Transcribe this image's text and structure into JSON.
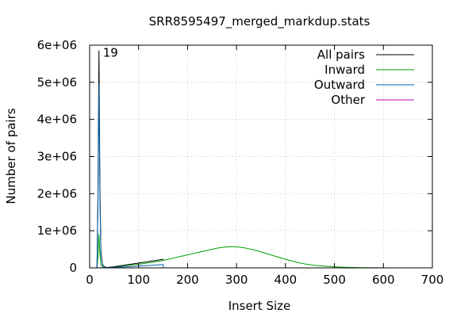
{
  "chart_data": {
    "type": "line",
    "title": "SRR8595497_merged_markdup.stats",
    "xlabel": "Insert Size",
    "ylabel": "Number of pairs",
    "xlim": [
      0,
      700
    ],
    "ylim": [
      0,
      6000000
    ],
    "x_ticks": [
      0,
      100,
      200,
      300,
      400,
      500,
      600,
      700
    ],
    "x_tick_labels": [
      "0",
      "100",
      "200",
      "300",
      "400",
      "500",
      "600",
      "700"
    ],
    "y_ticks": [
      0,
      1000000,
      2000000,
      3000000,
      4000000,
      5000000,
      6000000
    ],
    "y_tick_labels": [
      "0",
      "1e+06",
      "2e+06",
      "3e+06",
      "4e+06",
      "5e+06",
      "6e+06"
    ],
    "grid": true,
    "legend_position": "top-right",
    "annotations": [
      {
        "text": "19",
        "x": 19,
        "y": 5900000
      }
    ],
    "series": [
      {
        "name": "All pairs",
        "color": "#000000",
        "x": [
          15,
          17,
          19,
          21,
          23,
          26,
          30,
          35,
          40,
          50,
          60,
          70,
          80,
          90,
          100,
          110,
          120,
          130,
          140,
          150,
          151
        ],
        "y": [
          0,
          2000000,
          5850000,
          2200000,
          450000,
          100000,
          30000,
          10000,
          15000,
          30000,
          50000,
          70000,
          90000,
          110000,
          130000,
          150000,
          170000,
          190000,
          210000,
          230000,
          230000
        ]
      },
      {
        "name": "Inward",
        "color": "#00a000",
        "x": [
          15,
          17,
          19,
          21,
          23,
          26,
          30,
          35,
          40,
          50,
          60,
          70,
          80,
          90,
          100,
          110,
          120,
          130,
          140,
          150,
          160,
          170,
          180,
          190,
          200,
          210,
          220,
          230,
          240,
          250,
          260,
          270,
          280,
          290,
          300,
          310,
          320,
          330,
          340,
          350,
          360,
          370,
          380,
          390,
          400,
          410,
          420,
          430,
          440,
          450,
          460,
          470,
          480,
          490,
          500,
          510,
          520,
          530,
          540,
          550,
          560,
          570,
          580,
          590,
          600
        ],
        "y": [
          0,
          300000,
          900000,
          350000,
          80000,
          20000,
          8000,
          5000,
          10000,
          25000,
          40000,
          55000,
          70000,
          85000,
          100000,
          115000,
          135000,
          155000,
          175000,
          200000,
          230000,
          260000,
          290000,
          320000,
          350000,
          380000,
          410000,
          440000,
          470000,
          500000,
          530000,
          550000,
          565000,
          570000,
          565000,
          550000,
          530000,
          500000,
          470000,
          430000,
          390000,
          350000,
          310000,
          270000,
          230000,
          195000,
          160000,
          130000,
          105000,
          85000,
          68000,
          55000,
          45000,
          36000,
          28000,
          22000,
          17000,
          13000,
          10000,
          8000,
          6000,
          4500,
          3500,
          2500,
          2000
        ]
      },
      {
        "name": "Outward",
        "color": "#0060ad",
        "x": [
          15,
          17,
          19,
          21,
          23,
          26,
          30,
          35,
          40,
          50,
          60,
          70,
          80,
          90,
          100,
          110,
          120,
          130,
          140,
          150,
          151
        ],
        "y": [
          0,
          1700000,
          4950000,
          1850000,
          380000,
          80000,
          20000,
          5000,
          6000,
          12000,
          18000,
          25000,
          32000,
          40000,
          48000,
          56000,
          64000,
          72000,
          80000,
          90000,
          0
        ]
      },
      {
        "name": "Other",
        "color": "#c000c0",
        "x": [
          15,
          150
        ],
        "y": [
          0,
          0
        ]
      }
    ]
  }
}
